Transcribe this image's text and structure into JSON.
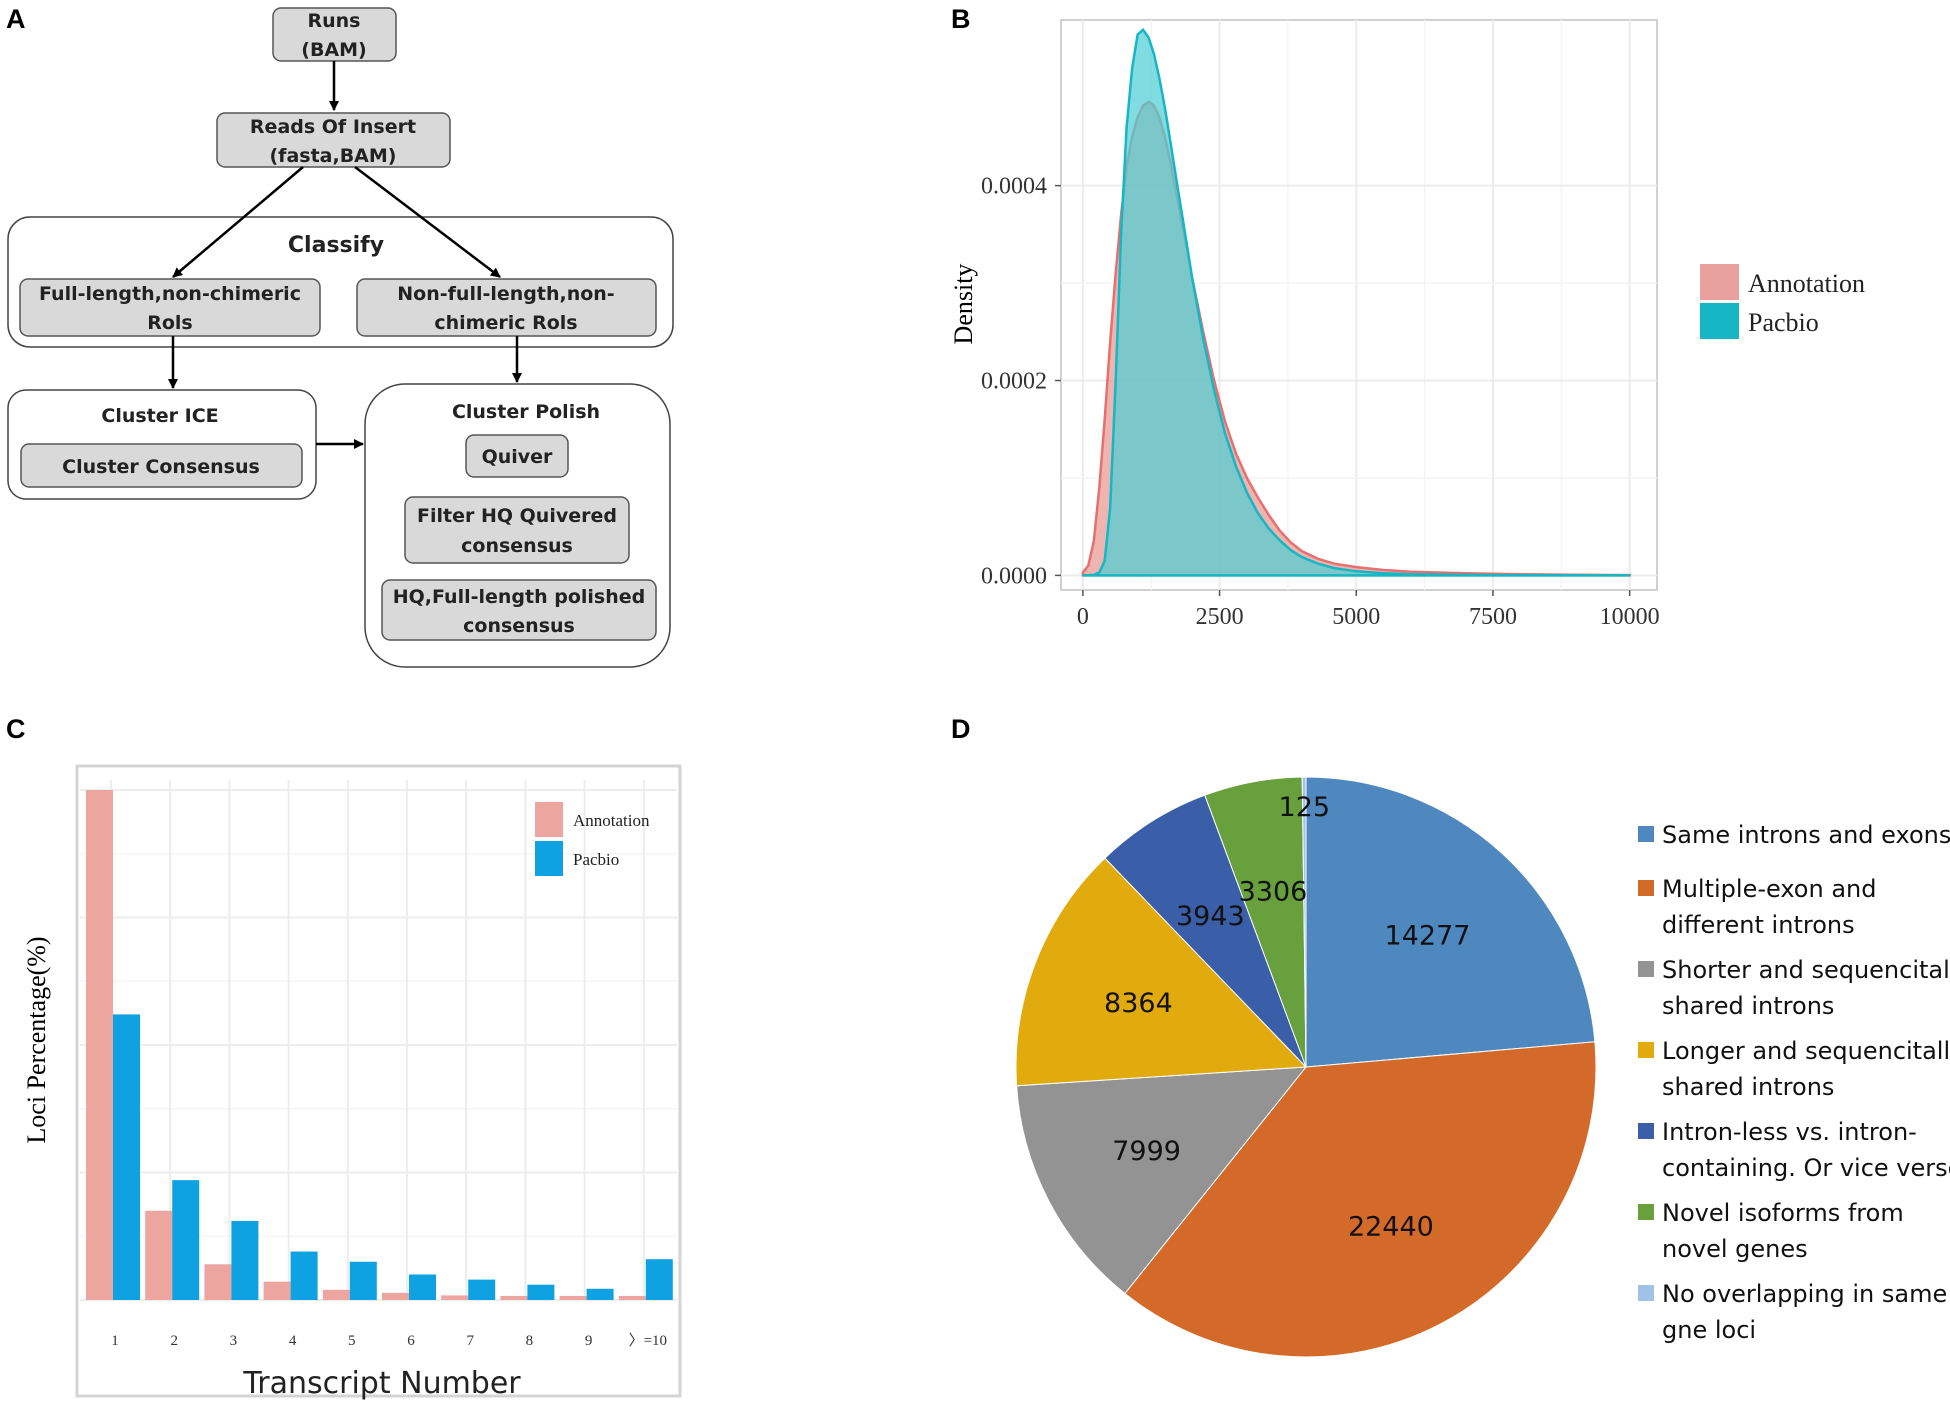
{
  "panels": {
    "a": "A",
    "b": "B",
    "c": "C",
    "d": "D"
  },
  "flowchart": {
    "nodes": {
      "runs": [
        "Runs",
        "(BAM)"
      ],
      "roi": [
        "Reads Of Insert",
        "(fasta,BAM)"
      ],
      "classify": "Classify",
      "fl": [
        "Full-length,non-chimeric",
        "Rols"
      ],
      "nfl": [
        "Non-full-length,non-",
        "chimeric Rols"
      ],
      "ice_title": "Cluster ICE",
      "consensus": "Cluster Consensus",
      "polish_title": "Cluster Polish",
      "quiver": "Quiver",
      "filter": [
        "Filter HQ Quivered",
        "consensus"
      ],
      "hq": [
        "HQ,Full-length polished",
        "consensus"
      ]
    }
  },
  "chart_data": [
    {
      "type": "area",
      "panel": "B",
      "ylabel": "Density",
      "xlabel": "",
      "xlim": [
        -400,
        10500
      ],
      "ylim": [
        -1.5e-05,
        0.00057
      ],
      "x_ticks": [
        0,
        2500,
        5000,
        7500,
        10000
      ],
      "x_tick_labels": [
        "0",
        "2500",
        "5000",
        "7500",
        "10000"
      ],
      "y_ticks": [
        0,
        0.0002,
        0.0004
      ],
      "y_tick_labels": [
        "0.0000",
        "0.0002",
        "0.0004"
      ],
      "legend": [
        "Annotation",
        "Pacbio"
      ],
      "colors": {
        "annotation_fill": "#e8a19c",
        "annotation_line": "#e86f6f",
        "pacbio_fill": "#4fcfd4",
        "pacbio_line": "#17b6c4"
      },
      "series": [
        {
          "name": "Annotation",
          "x": [
            0,
            100,
            200,
            300,
            400,
            500,
            600,
            700,
            800,
            900,
            1000,
            1100,
            1200,
            1300,
            1400,
            1500,
            1600,
            1700,
            1800,
            1900,
            2000,
            2200,
            2400,
            2600,
            2800,
            3000,
            3200,
            3400,
            3600,
            3800,
            4000,
            4300,
            4600,
            5000,
            5500,
            6000,
            7000,
            8000,
            9000,
            10000
          ],
          "values": [
            3e-06,
            1e-05,
            3.5e-05,
            9e-05,
            0.00016,
            0.00024,
            0.00031,
            0.00037,
            0.00042,
            0.00045,
            0.00047,
            0.000482,
            0.000486,
            0.000482,
            0.00047,
            0.00045,
            0.000425,
            0.000395,
            0.000365,
            0.000335,
            0.000305,
            0.00025,
            0.0002,
            0.000158,
            0.000125,
            0.0001,
            8e-05,
            6.2e-05,
            4.6e-05,
            3.4e-05,
            2.5e-05,
            1.7e-05,
            1.2e-05,
            8.5e-06,
            5.5e-06,
            3.8e-06,
            2.2e-06,
            1.2e-06,
            6e-07,
            3e-07
          ]
        },
        {
          "name": "Pacbio",
          "x": [
            0,
            200,
            300,
            400,
            500,
            600,
            700,
            800,
            900,
            1000,
            1100,
            1200,
            1300,
            1400,
            1500,
            1600,
            1700,
            1800,
            1900,
            2000,
            2200,
            2400,
            2600,
            2800,
            3000,
            3200,
            3400,
            3600,
            3800,
            4000,
            4300,
            4600,
            5000,
            5500,
            6000,
            7000,
            8000,
            9000,
            10000
          ],
          "values": [
            0,
            5e-07,
            3e-06,
            1.5e-05,
            7e-05,
            0.0002,
            0.00035,
            0.00046,
            0.00052,
            0.000555,
            0.00056,
            0.000552,
            0.000535,
            0.00051,
            0.00048,
            0.000445,
            0.00041,
            0.000375,
            0.00034,
            0.000305,
            0.000243,
            0.00019,
            0.000146,
            0.000112,
            8.5e-05,
            6.4e-05,
            4.8e-05,
            3.6e-05,
            2.6e-05,
            1.9e-05,
            1.2e-05,
            7.5e-06,
            4.2e-06,
            2.2e-06,
            1.2e-06,
            5e-07,
            2e-07,
            1e-07,
            0
          ]
        }
      ]
    },
    {
      "type": "bar",
      "panel": "C",
      "xlabel": "Transcript  Number",
      "ylabel": "Loci   Percentage(%)",
      "categories": [
        "1",
        "2",
        "3",
        "4",
        "5",
        "6",
        "7",
        "8",
        "9",
        "〉=10"
      ],
      "ylim": [
        0,
        100
      ],
      "legend": [
        "Annotation",
        "Pacbio"
      ],
      "colors": {
        "annotation": "#eda5a0",
        "pacbio": "#0ea2e2"
      },
      "series": [
        {
          "name": "Annotation",
          "values": [
            100,
            17.5,
            7,
            3.6,
            2,
            1.4,
            0.9,
            0.8,
            0.8,
            0.8
          ]
        },
        {
          "name": "Pacbio",
          "values": [
            56,
            23.5,
            15.5,
            9.5,
            7.5,
            5,
            4,
            3,
            2.2,
            8
          ]
        }
      ]
    },
    {
      "type": "pie",
      "panel": "D",
      "categories": [
        "Same introns and exons",
        "Multiple-exon and different introns",
        "Shorter and sequencitally shared introns",
        "Longer and sequencitally shared introns",
        "Intron-less vs. intron-containing. Or vice verse",
        "Novel isoforms from novel genes",
        "No overlapping in same gne loci"
      ],
      "values": [
        14277,
        22440,
        7999,
        8364,
        3943,
        3306,
        125
      ],
      "value_labels": [
        "14277",
        "22440",
        "7999",
        "8364",
        "3943",
        "3306",
        "125"
      ],
      "colors": [
        "#4f88bf",
        "#d46a2a",
        "#939393",
        "#e2ab0d",
        "#3b5ea8",
        "#67a03c",
        "#9fc2e6"
      ],
      "legend_lines": [
        [
          "Same introns and exons"
        ],
        [
          "Multiple-exon and",
          "different introns"
        ],
        [
          "Shorter and sequencitally",
          "shared introns"
        ],
        [
          "Longer and sequencitally",
          "shared introns"
        ],
        [
          "Intron-less vs. intron-",
          "containing. Or vice verse"
        ],
        [
          "Novel isoforms from",
          "novel genes"
        ],
        [
          "No overlapping in same",
          "gne loci"
        ]
      ]
    }
  ]
}
